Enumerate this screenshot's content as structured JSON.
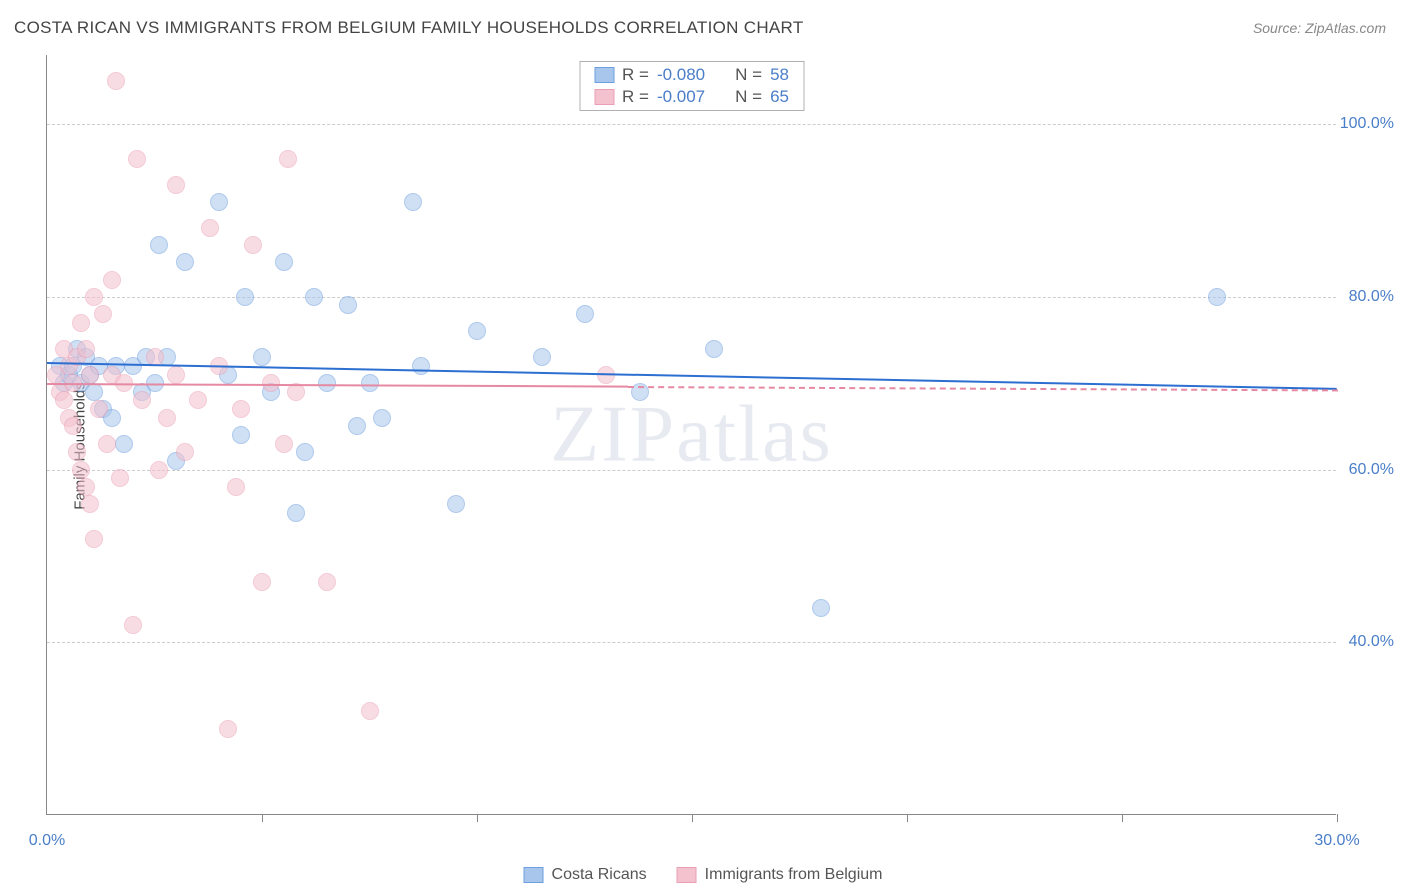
{
  "title": "COSTA RICAN VS IMMIGRANTS FROM BELGIUM FAMILY HOUSEHOLDS CORRELATION CHART",
  "source": "Source: ZipAtlas.com",
  "ylabel": "Family Households",
  "watermark": "ZIPatlas",
  "chart": {
    "type": "scatter",
    "xlim": [
      0,
      30
    ],
    "ylim": [
      20,
      108
    ],
    "xtick_labels": [
      "0.0%",
      "30.0%"
    ],
    "xtick_positions_pct": [
      0,
      100
    ],
    "xtick_minor_positions": [
      5,
      10,
      15,
      20,
      25,
      30
    ],
    "ytick_labels": [
      "40.0%",
      "60.0%",
      "80.0%",
      "100.0%"
    ],
    "ytick_values": [
      40,
      60,
      80,
      100
    ],
    "background_color": "#ffffff",
    "grid_color": "#cccccc",
    "axis_color": "#888888",
    "label_color": "#4a7ec9",
    "marker_radius": 9,
    "marker_opacity": 0.55,
    "marker_border_opacity": 0.9
  },
  "series": [
    {
      "name": "Costa Ricans",
      "color_fill": "#a8c6ec",
      "color_border": "#6d9fde",
      "color_line": "#2c6fd1",
      "R": "-0.080",
      "N": "58",
      "regression": {
        "x0": 0,
        "y0": 72.5,
        "x1": 30,
        "y1": 69.5,
        "dash_after_x": 30
      },
      "points": [
        [
          0.3,
          72
        ],
        [
          0.4,
          70
        ],
        [
          0.5,
          71
        ],
        [
          0.6,
          72
        ],
        [
          0.7,
          74
        ],
        [
          0.8,
          70
        ],
        [
          0.9,
          73
        ],
        [
          1.0,
          71
        ],
        [
          1.1,
          69
        ],
        [
          1.2,
          72
        ],
        [
          1.3,
          67
        ],
        [
          1.5,
          66
        ],
        [
          1.6,
          72
        ],
        [
          1.8,
          63
        ],
        [
          2.0,
          72
        ],
        [
          2.2,
          69
        ],
        [
          2.3,
          73
        ],
        [
          2.5,
          70
        ],
        [
          2.6,
          86
        ],
        [
          2.8,
          73
        ],
        [
          3.0,
          61
        ],
        [
          3.2,
          84
        ],
        [
          4.0,
          91
        ],
        [
          4.2,
          71
        ],
        [
          4.5,
          64
        ],
        [
          4.6,
          80
        ],
        [
          5.0,
          73
        ],
        [
          5.2,
          69
        ],
        [
          5.5,
          84
        ],
        [
          5.8,
          55
        ],
        [
          6.0,
          62
        ],
        [
          6.2,
          80
        ],
        [
          6.5,
          70
        ],
        [
          7.0,
          79
        ],
        [
          7.2,
          65
        ],
        [
          7.5,
          70
        ],
        [
          7.8,
          66
        ],
        [
          8.5,
          91
        ],
        [
          8.7,
          72
        ],
        [
          9.5,
          56
        ],
        [
          10.0,
          76
        ],
        [
          11.5,
          73
        ],
        [
          12.5,
          78
        ],
        [
          13.8,
          69
        ],
        [
          15.5,
          74
        ],
        [
          18.0,
          44
        ],
        [
          27.2,
          80
        ]
      ]
    },
    {
      "name": "Immigrants from Belgium",
      "color_fill": "#f4c1ce",
      "color_border": "#eaa0b4",
      "color_line": "#e68aa3",
      "R": "-0.007",
      "N": "65",
      "regression": {
        "x0": 0,
        "y0": 70.0,
        "x1": 13.5,
        "y1": 69.7,
        "dash_after_x": 13.5,
        "dash_x1": 30,
        "dash_y1": 69.3
      },
      "points": [
        [
          0.2,
          71
        ],
        [
          0.3,
          69
        ],
        [
          0.4,
          68
        ],
        [
          0.4,
          74
        ],
        [
          0.5,
          72
        ],
        [
          0.5,
          66
        ],
        [
          0.6,
          70
        ],
        [
          0.6,
          65
        ],
        [
          0.7,
          73
        ],
        [
          0.7,
          62
        ],
        [
          0.8,
          77
        ],
        [
          0.8,
          60
        ],
        [
          0.9,
          74
        ],
        [
          0.9,
          58
        ],
        [
          1.0,
          71
        ],
        [
          1.0,
          56
        ],
        [
          1.1,
          80
        ],
        [
          1.1,
          52
        ],
        [
          1.2,
          67
        ],
        [
          1.3,
          78
        ],
        [
          1.4,
          63
        ],
        [
          1.5,
          71
        ],
        [
          1.5,
          82
        ],
        [
          1.6,
          105
        ],
        [
          1.7,
          59
        ],
        [
          1.8,
          70
        ],
        [
          2.0,
          42
        ],
        [
          2.1,
          96
        ],
        [
          2.2,
          68
        ],
        [
          2.5,
          73
        ],
        [
          2.6,
          60
        ],
        [
          2.8,
          66
        ],
        [
          3.0,
          71
        ],
        [
          3.0,
          93
        ],
        [
          3.2,
          62
        ],
        [
          3.5,
          68
        ],
        [
          3.8,
          88
        ],
        [
          4.0,
          72
        ],
        [
          4.2,
          30
        ],
        [
          4.4,
          58
        ],
        [
          4.5,
          67
        ],
        [
          4.8,
          86
        ],
        [
          5.0,
          47
        ],
        [
          5.2,
          70
        ],
        [
          5.5,
          63
        ],
        [
          5.6,
          96
        ],
        [
          5.8,
          69
        ],
        [
          6.5,
          47
        ],
        [
          7.5,
          32
        ],
        [
          13.0,
          71
        ]
      ]
    }
  ],
  "stat_labels": {
    "R": "R = ",
    "N": "N = "
  },
  "legend_items": [
    "Costa Ricans",
    "Immigrants from Belgium"
  ]
}
